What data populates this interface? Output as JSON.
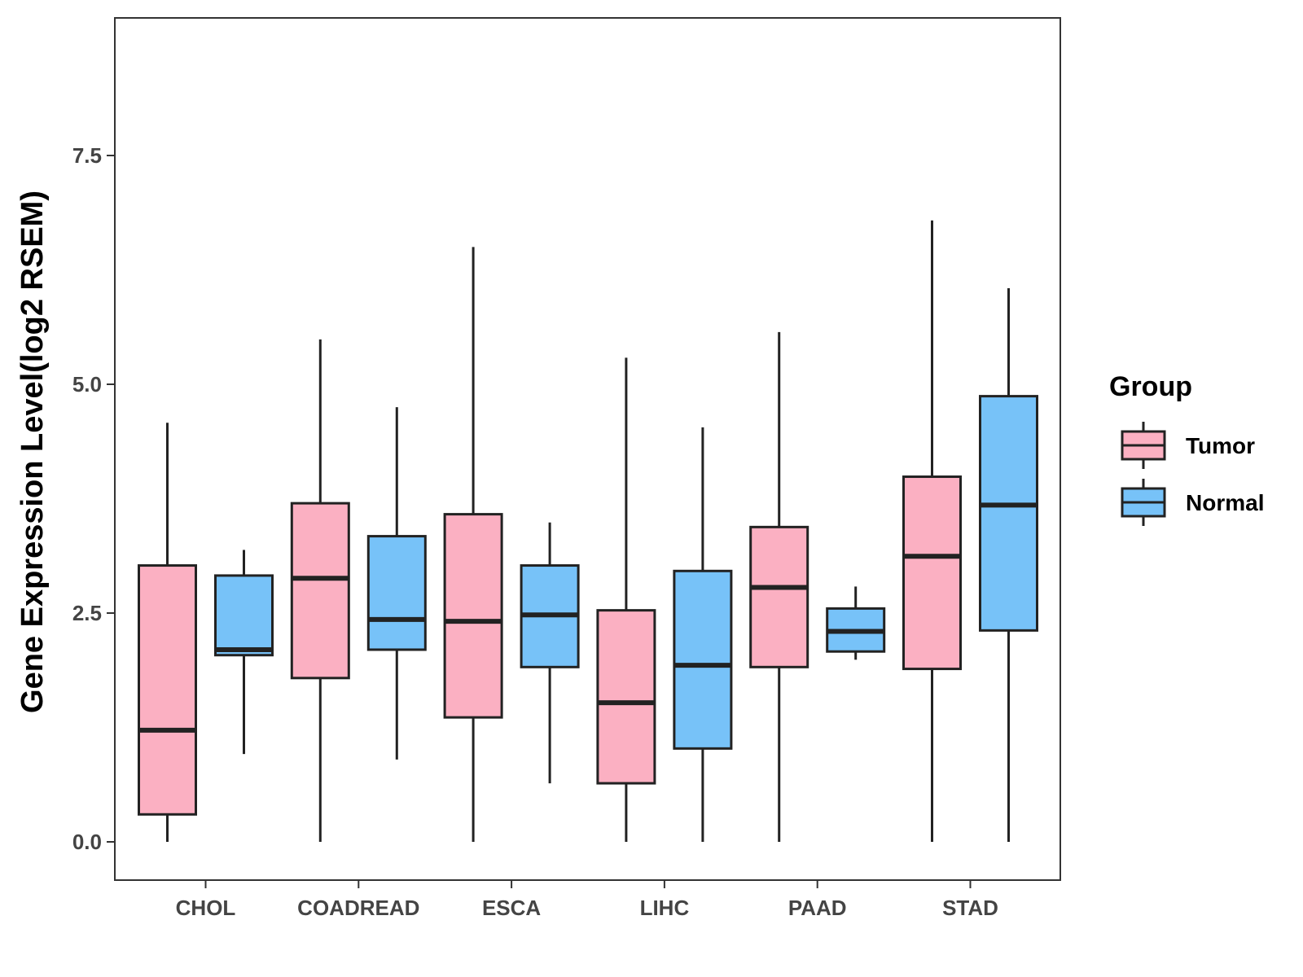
{
  "chart_data": {
    "type": "boxplot",
    "title": "",
    "xlabel": "",
    "ylabel": "Gene Expression Level(log2 RSEM)",
    "ylim": [
      -0.35,
      9.1
    ],
    "yticks": [
      0.0,
      2.5,
      5.0,
      7.5
    ],
    "ytick_labels": [
      "0.0",
      "2.5",
      "5.0",
      "7.5"
    ],
    "categories": [
      "CHOL",
      "COADREAD",
      "ESCA",
      "LIHC",
      "PAAD",
      "STAD"
    ],
    "legend_title": "Group",
    "legend_position": "right",
    "series": [
      {
        "name": "Tumor",
        "color": "#FBB0C2",
        "boxes": [
          {
            "min": 0.0,
            "q1": 0.3,
            "median": 1.22,
            "q3": 3.02,
            "max": 4.58
          },
          {
            "min": 0.0,
            "q1": 1.79,
            "median": 2.88,
            "q3": 3.7,
            "max": 5.49
          },
          {
            "min": 0.0,
            "q1": 1.36,
            "median": 2.41,
            "q3": 3.58,
            "max": 6.5
          },
          {
            "min": 0.0,
            "q1": 0.64,
            "median": 1.52,
            "q3": 2.53,
            "max": 5.29
          },
          {
            "min": 0.0,
            "q1": 1.91,
            "median": 2.78,
            "q3": 3.44,
            "max": 5.57
          },
          {
            "min": 0.0,
            "q1": 1.89,
            "median": 3.12,
            "q3": 3.99,
            "max": 6.79
          }
        ]
      },
      {
        "name": "Normal",
        "color": "#77C2F8",
        "boxes": [
          {
            "min": 0.96,
            "q1": 2.04,
            "median": 2.1,
            "q3": 2.91,
            "max": 3.19
          },
          {
            "min": 0.9,
            "q1": 2.1,
            "median": 2.43,
            "q3": 3.34,
            "max": 4.75
          },
          {
            "min": 0.64,
            "q1": 1.91,
            "median": 2.48,
            "q3": 3.02,
            "max": 3.49
          },
          {
            "min": 0.0,
            "q1": 1.02,
            "median": 1.93,
            "q3": 2.96,
            "max": 4.53
          },
          {
            "min": 1.99,
            "q1": 2.08,
            "median": 2.3,
            "q3": 2.55,
            "max": 2.79
          },
          {
            "min": 0.0,
            "q1": 2.31,
            "median": 3.68,
            "q3": 4.87,
            "max": 6.05
          }
        ]
      }
    ]
  }
}
